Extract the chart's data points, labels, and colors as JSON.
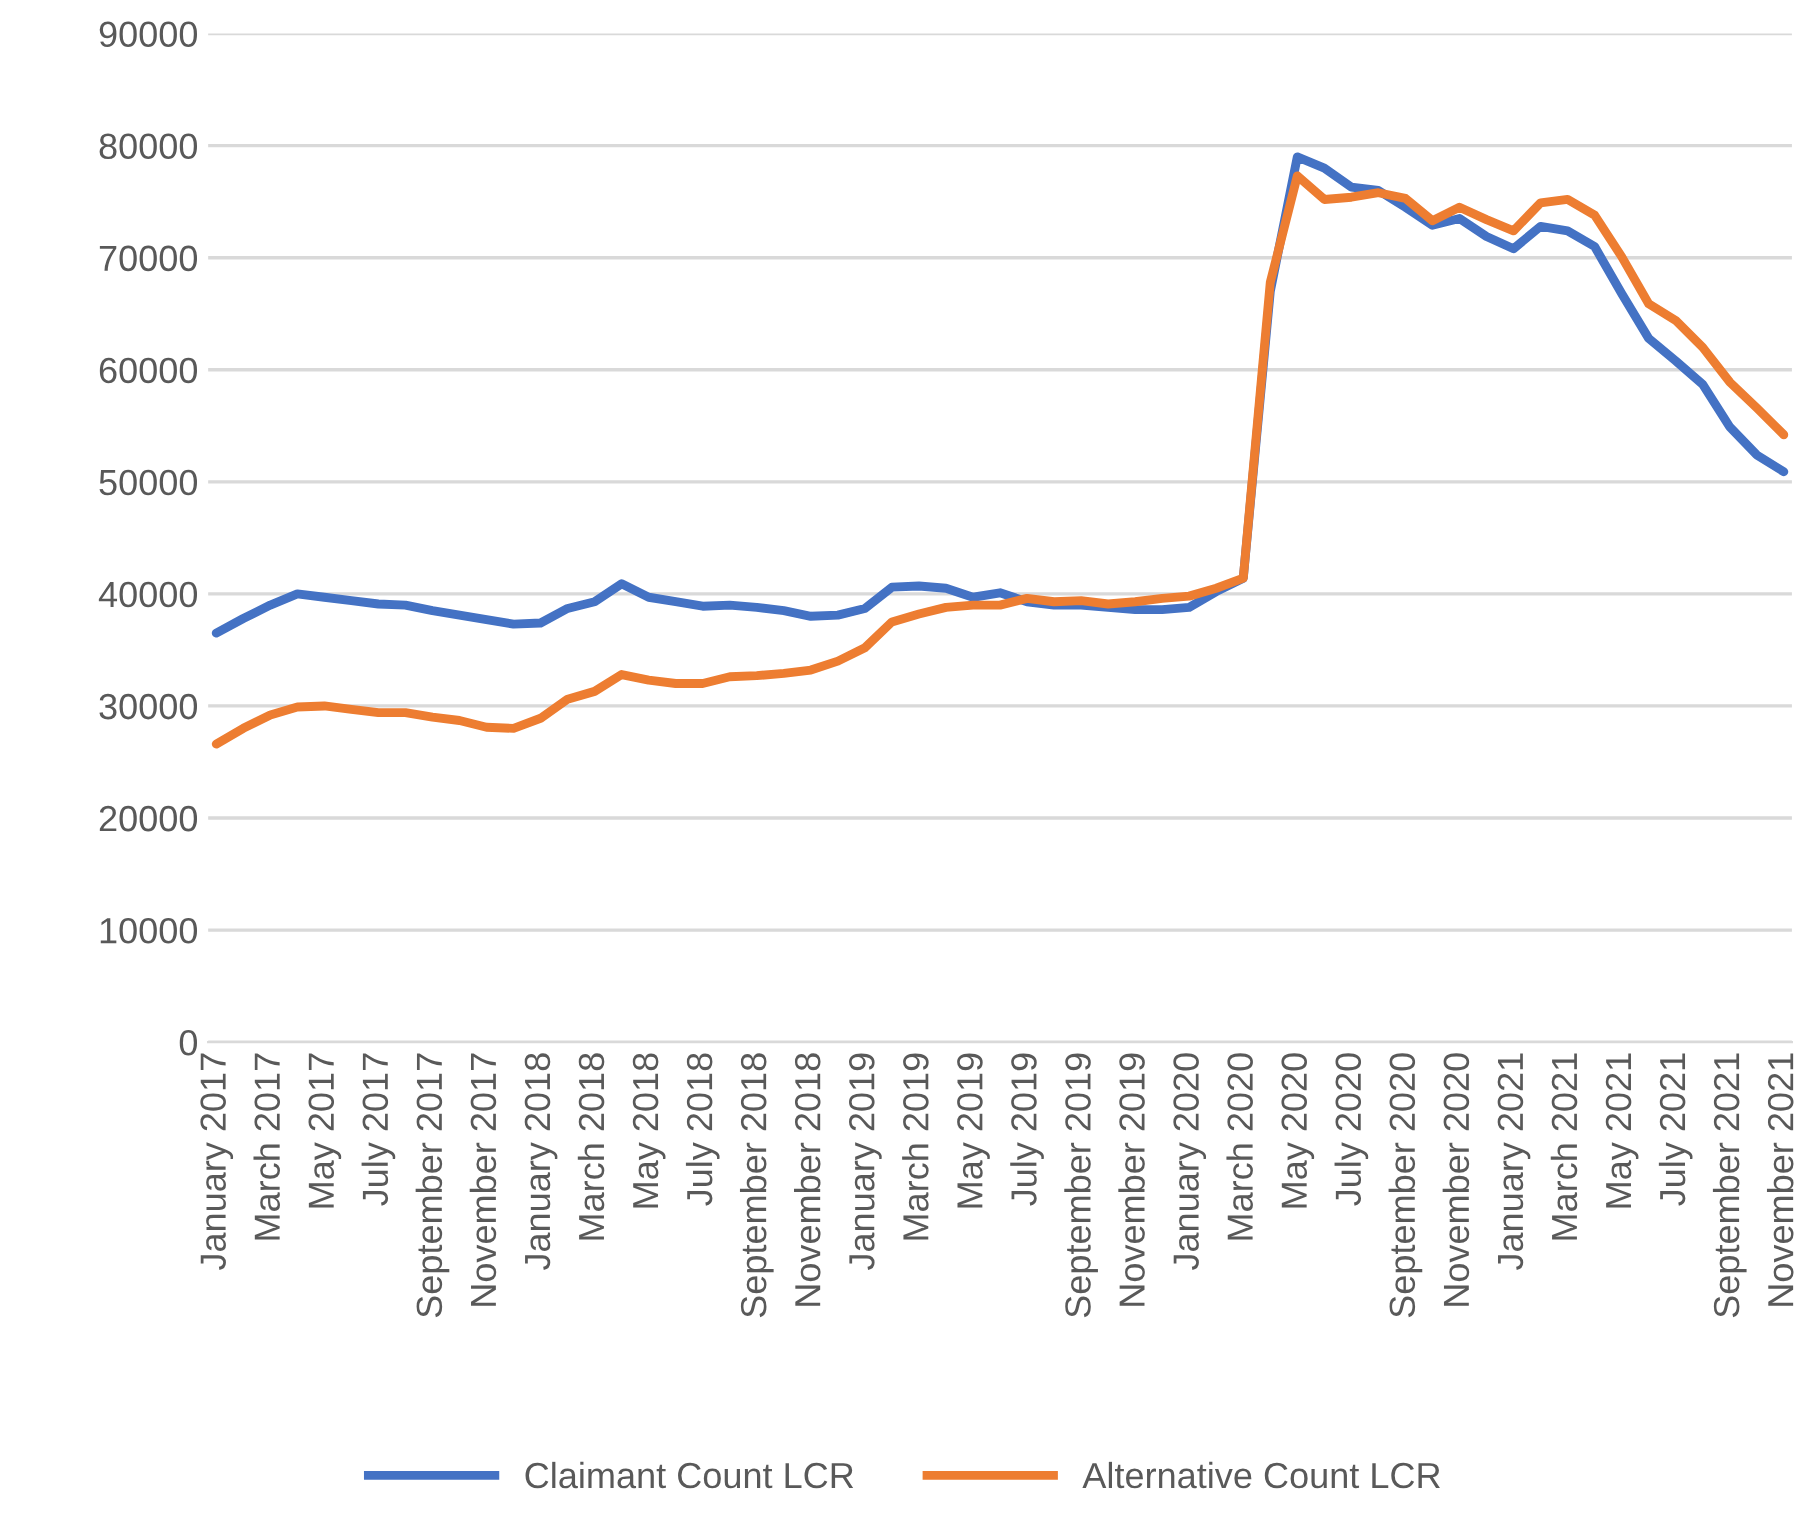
{
  "chart_data": {
    "type": "line",
    "categories": [
      "January 2017",
      null,
      "March 2017",
      null,
      "May 2017",
      null,
      "July 2017",
      null,
      "September 2017",
      null,
      "November 2017",
      null,
      "January 2018",
      null,
      "March 2018",
      null,
      "May 2018",
      null,
      "July 2018",
      null,
      "September 2018",
      null,
      "November 2018",
      null,
      "January 2019",
      null,
      "March 2019",
      null,
      "May 2019",
      null,
      "July 2019",
      null,
      "September 2019",
      null,
      "November 2019",
      null,
      "January 2020",
      null,
      "March 2020",
      null,
      "May 2020",
      null,
      "July 2020",
      null,
      "September 2020",
      null,
      "November 2020",
      null,
      "January 2021",
      null,
      "March 2021",
      null,
      "May 2021",
      null,
      "July 2021",
      null,
      "September 2021",
      null,
      "November 2021"
    ],
    "series": [
      {
        "name": "Claimant Count LCR",
        "color": "#4472c4",
        "values": [
          36500,
          37800,
          39000,
          40000,
          39700,
          39400,
          39100,
          39000,
          38500,
          38100,
          37700,
          37300,
          37400,
          38700,
          39300,
          40900,
          39700,
          39300,
          38900,
          39000,
          38800,
          38500,
          38000,
          38100,
          38700,
          40600,
          40700,
          40500,
          39700,
          40100,
          39300,
          39000,
          39000,
          38800,
          38600,
          38600,
          38800,
          40200,
          41400,
          67000,
          79000,
          78000,
          76300,
          76000,
          74500,
          72900,
          73500,
          71900,
          70800,
          72800,
          72400,
          71000,
          66800,
          62800,
          60800,
          58700,
          54900,
          52400,
          50900
        ]
      },
      {
        "name": "Alternative Count LCR",
        "color": "#ed7d31",
        "values": [
          26600,
          28000,
          29200,
          29900,
          30000,
          29700,
          29400,
          29400,
          29000,
          28700,
          28100,
          28000,
          28900,
          30600,
          31300,
          32800,
          32300,
          32000,
          32000,
          32600,
          32700,
          32900,
          33200,
          34000,
          35200,
          37500,
          38200,
          38800,
          39000,
          39000,
          39600,
          39300,
          39400,
          39100,
          39300,
          39600,
          39800,
          40500,
          41400,
          67800,
          77300,
          75200,
          75400,
          75800,
          75300,
          73300,
          74500,
          73400,
          72400,
          74900,
          75200,
          73800,
          70100,
          65900,
          64400,
          62000,
          58900,
          56600,
          54200
        ]
      }
    ],
    "ylim": [
      0,
      90000
    ],
    "yticks": [
      0,
      10000,
      20000,
      30000,
      40000,
      50000,
      60000,
      70000,
      80000,
      90000
    ],
    "grid": "y",
    "legend": "bottom",
    "marker": "none",
    "line_style": "solid"
  }
}
